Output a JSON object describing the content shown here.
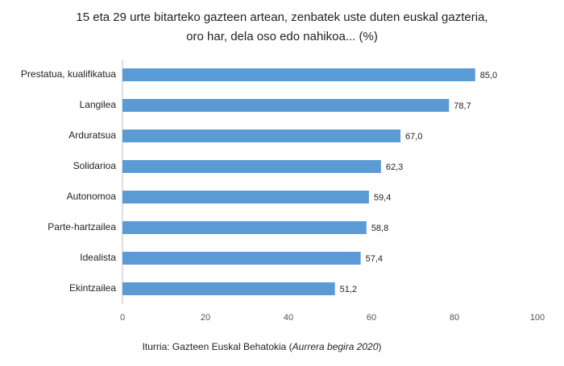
{
  "chart_data": {
    "type": "bar",
    "orientation": "horizontal",
    "title": [
      "15 eta 29 urte bitarteko gazteen artean, zenbatek uste duten euskal gazteria,",
      "oro har, dela oso edo nahikoa... (%)"
    ],
    "categories": [
      "Prestatua, kualifikatua",
      "Langilea",
      "Arduratsua",
      "Solidarioa",
      "Autonomoa",
      "Parte-hartzailea",
      "Idealista",
      "Ekintzailea"
    ],
    "values": [
      85.0,
      78.7,
      67.0,
      62.3,
      59.4,
      58.8,
      57.4,
      51.2
    ],
    "value_labels": [
      "85,0",
      "78,7",
      "67,0",
      "62,3",
      "59,4",
      "58,8",
      "57,4",
      "51,2"
    ],
    "color": "#5b9bd5",
    "xlim": [
      0,
      100
    ],
    "xticks": [
      0,
      20,
      40,
      60,
      80,
      100
    ],
    "grid": false,
    "source": {
      "before": "Iturria: Gazteen Euskal Behatokia (",
      "italic": "Aurrera begira 2020",
      "after": ")"
    }
  }
}
